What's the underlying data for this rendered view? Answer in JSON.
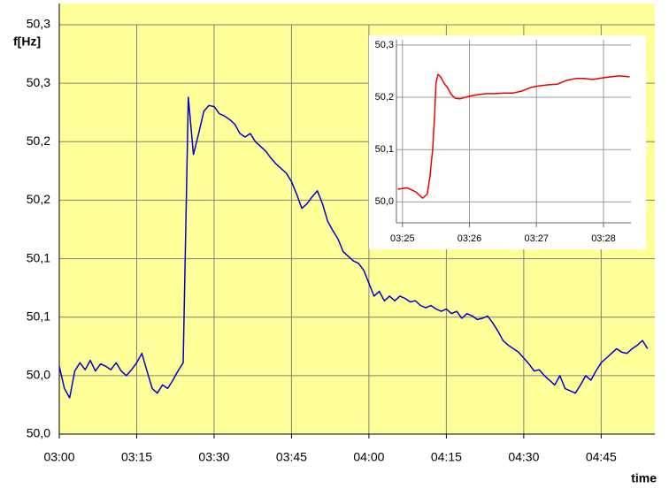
{
  "chart_data": [
    {
      "type": "line",
      "y_label": "f[Hz]",
      "x_label": "time",
      "color": "#0000cc",
      "grid": true,
      "xlim": [
        180,
        295.4
      ],
      "ylim": [
        49.95,
        50.3
      ],
      "xticks": [
        {
          "value": 180,
          "label": "03:00"
        },
        {
          "value": 195,
          "label": "03:15"
        },
        {
          "value": 210,
          "label": "03:30"
        },
        {
          "value": 225,
          "label": "03:45"
        },
        {
          "value": 240,
          "label": "04:00"
        },
        {
          "value": 255,
          "label": "04:15"
        },
        {
          "value": 270,
          "label": "04:30"
        },
        {
          "value": 285,
          "label": "04:45"
        }
      ],
      "yticks": [
        {
          "value": 49.95,
          "label": "50,0"
        },
        {
          "value": 50.0,
          "label": "50,0"
        },
        {
          "value": 50.05,
          "label": "50,1"
        },
        {
          "value": 50.1,
          "label": "50,1"
        },
        {
          "value": 50.15,
          "label": "50,2"
        },
        {
          "value": 50.2,
          "label": "50,2"
        },
        {
          "value": 50.25,
          "label": "50,3"
        },
        {
          "value": 50.3,
          "label": "50,3"
        }
      ],
      "x": [
        180,
        181,
        182,
        183,
        184,
        185,
        186,
        187,
        188,
        189,
        190,
        191,
        192,
        193,
        194,
        195,
        196,
        197,
        198,
        199,
        200,
        201,
        202,
        203,
        204,
        205,
        206,
        207,
        208,
        209,
        210,
        211,
        212,
        213,
        214,
        215,
        216,
        217,
        218,
        219,
        220,
        221,
        222,
        223,
        224,
        225,
        226,
        227,
        228,
        229,
        230,
        231,
        232,
        233,
        234,
        235,
        236,
        237,
        238,
        239,
        240,
        241,
        242,
        243,
        244,
        245,
        246,
        247,
        248,
        249,
        250,
        251,
        252,
        253,
        254,
        255,
        256,
        257,
        258,
        259,
        260,
        261,
        262,
        263,
        264,
        265,
        266,
        267,
        268,
        269,
        270,
        271,
        272,
        273,
        274,
        275,
        276,
        277,
        278,
        279,
        280,
        281,
        282,
        283,
        284,
        285,
        286,
        287,
        288,
        289,
        290,
        291,
        292,
        293,
        294
      ],
      "values": [
        50.008,
        49.989,
        49.981,
        50.004,
        50.011,
        50.005,
        50.013,
        50.004,
        50.01,
        50.008,
        50.005,
        50.011,
        50.004,
        50.0,
        50.005,
        50.011,
        50.019,
        50.004,
        49.989,
        49.985,
        49.992,
        49.989,
        49.996,
        50.004,
        50.011,
        50.238,
        50.189,
        50.207,
        50.226,
        50.231,
        50.23,
        50.224,
        50.222,
        50.219,
        50.215,
        50.207,
        50.204,
        50.207,
        50.2,
        50.196,
        50.192,
        50.186,
        50.181,
        50.177,
        50.173,
        50.166,
        50.155,
        50.143,
        50.147,
        50.153,
        50.158,
        50.147,
        50.132,
        50.124,
        50.117,
        50.106,
        50.102,
        50.098,
        50.096,
        50.09,
        50.079,
        50.068,
        50.072,
        50.064,
        50.068,
        50.064,
        50.068,
        50.066,
        50.063,
        50.064,
        50.06,
        50.058,
        50.06,
        50.057,
        50.055,
        50.057,
        50.053,
        50.055,
        50.049,
        50.053,
        50.051,
        50.048,
        50.049,
        50.051,
        50.045,
        50.038,
        50.03,
        50.026,
        50.023,
        50.02,
        50.015,
        50.01,
        50.004,
        50.005,
        50.0,
        49.996,
        49.992,
        50.0,
        49.989,
        49.987,
        49.985,
        49.992,
        50.0,
        49.996,
        50.004,
        50.011,
        50.015,
        50.019,
        50.023,
        50.02,
        50.019,
        50.023,
        50.026,
        50.03,
        50.023
      ]
    },
    {
      "type": "line",
      "color": "#ee0000",
      "grid": true,
      "xlim": [
        204.91,
        208.41
      ],
      "ylim": [
        49.96,
        50.31
      ],
      "xticks": [
        {
          "value": 205,
          "label": "03:25"
        },
        {
          "value": 206,
          "label": "03:26"
        },
        {
          "value": 207,
          "label": "03:27"
        },
        {
          "value": 208,
          "label": "03:28"
        }
      ],
      "yticks": [
        {
          "value": 50.0,
          "label": "50,0"
        },
        {
          "value": 50.1,
          "label": "50,1"
        },
        {
          "value": 50.2,
          "label": "50,2"
        },
        {
          "value": 50.3,
          "label": "50,3"
        }
      ],
      "x": [
        204.93,
        205.07,
        205.2,
        205.3,
        205.37,
        205.41,
        205.45,
        205.48,
        205.5,
        205.53,
        205.57,
        205.62,
        205.67,
        205.73,
        205.79,
        205.86,
        205.99,
        206.12,
        206.25,
        206.39,
        206.52,
        206.65,
        206.78,
        206.92,
        207.05,
        207.18,
        207.31,
        207.44,
        207.58,
        207.71,
        207.84,
        207.97,
        208.1,
        208.24,
        208.39
      ],
      "values": [
        50.024,
        50.027,
        50.019,
        50.007,
        50.015,
        50.049,
        50.1,
        50.168,
        50.227,
        50.244,
        50.239,
        50.227,
        50.219,
        50.205,
        50.198,
        50.197,
        50.202,
        50.205,
        50.207,
        50.207,
        50.208,
        50.208,
        50.212,
        50.219,
        50.222,
        50.224,
        50.225,
        50.232,
        50.236,
        50.236,
        50.234,
        50.237,
        50.239,
        50.241,
        50.239
      ]
    }
  ]
}
